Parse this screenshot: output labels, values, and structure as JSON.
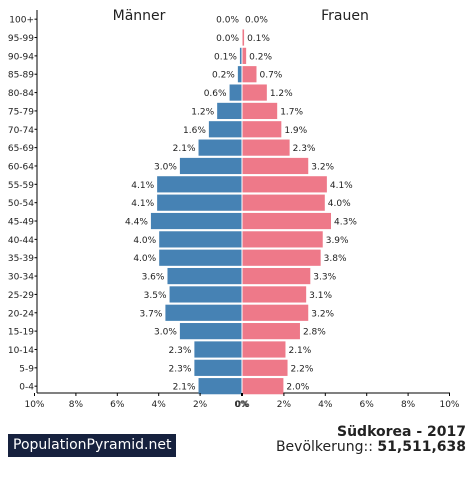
{
  "branding": {
    "site": "PopulationPyramid.net"
  },
  "footer": {
    "country_year": "Südkorea - 2017",
    "population_label": "Bevölkerung::",
    "population_value": "51,511,638"
  },
  "colors": {
    "male": "#4682b4",
    "female": "#ee7989",
    "axis": "#000000",
    "brand_bg": "#16213e"
  },
  "chart_data": {
    "type": "bar",
    "orientation": "horizontal-pyramid",
    "categories": [
      "100+",
      "95-99",
      "90-94",
      "85-89",
      "80-84",
      "75-79",
      "70-74",
      "65-69",
      "60-64",
      "55-59",
      "50-54",
      "45-49",
      "40-44",
      "35-39",
      "30-34",
      "25-29",
      "20-24",
      "15-19",
      "10-14",
      "5-9",
      "0-4"
    ],
    "series": [
      {
        "name": "Männer",
        "values": [
          0.0,
          0.0,
          0.1,
          0.2,
          0.6,
          1.2,
          1.6,
          2.1,
          3.0,
          4.1,
          4.1,
          4.4,
          4.0,
          4.0,
          3.6,
          3.5,
          3.7,
          3.0,
          2.3,
          2.3,
          2.1
        ],
        "color": "#4682b4"
      },
      {
        "name": "Frauen",
        "values": [
          0.0,
          0.1,
          0.2,
          0.7,
          1.2,
          1.7,
          1.9,
          2.3,
          3.2,
          4.1,
          4.0,
          4.3,
          3.9,
          3.8,
          3.3,
          3.1,
          3.2,
          2.8,
          2.1,
          2.2,
          2.0
        ],
        "color": "#ee7989"
      }
    ],
    "value_unit": "%",
    "xlim": [
      0,
      10
    ],
    "x_ticks_left": [
      "10%",
      "8%",
      "6%",
      "4%",
      "2%",
      "0%"
    ],
    "x_ticks_right": [
      "0%",
      "2%",
      "4%",
      "6%",
      "8%",
      "10%"
    ],
    "grid": false
  }
}
